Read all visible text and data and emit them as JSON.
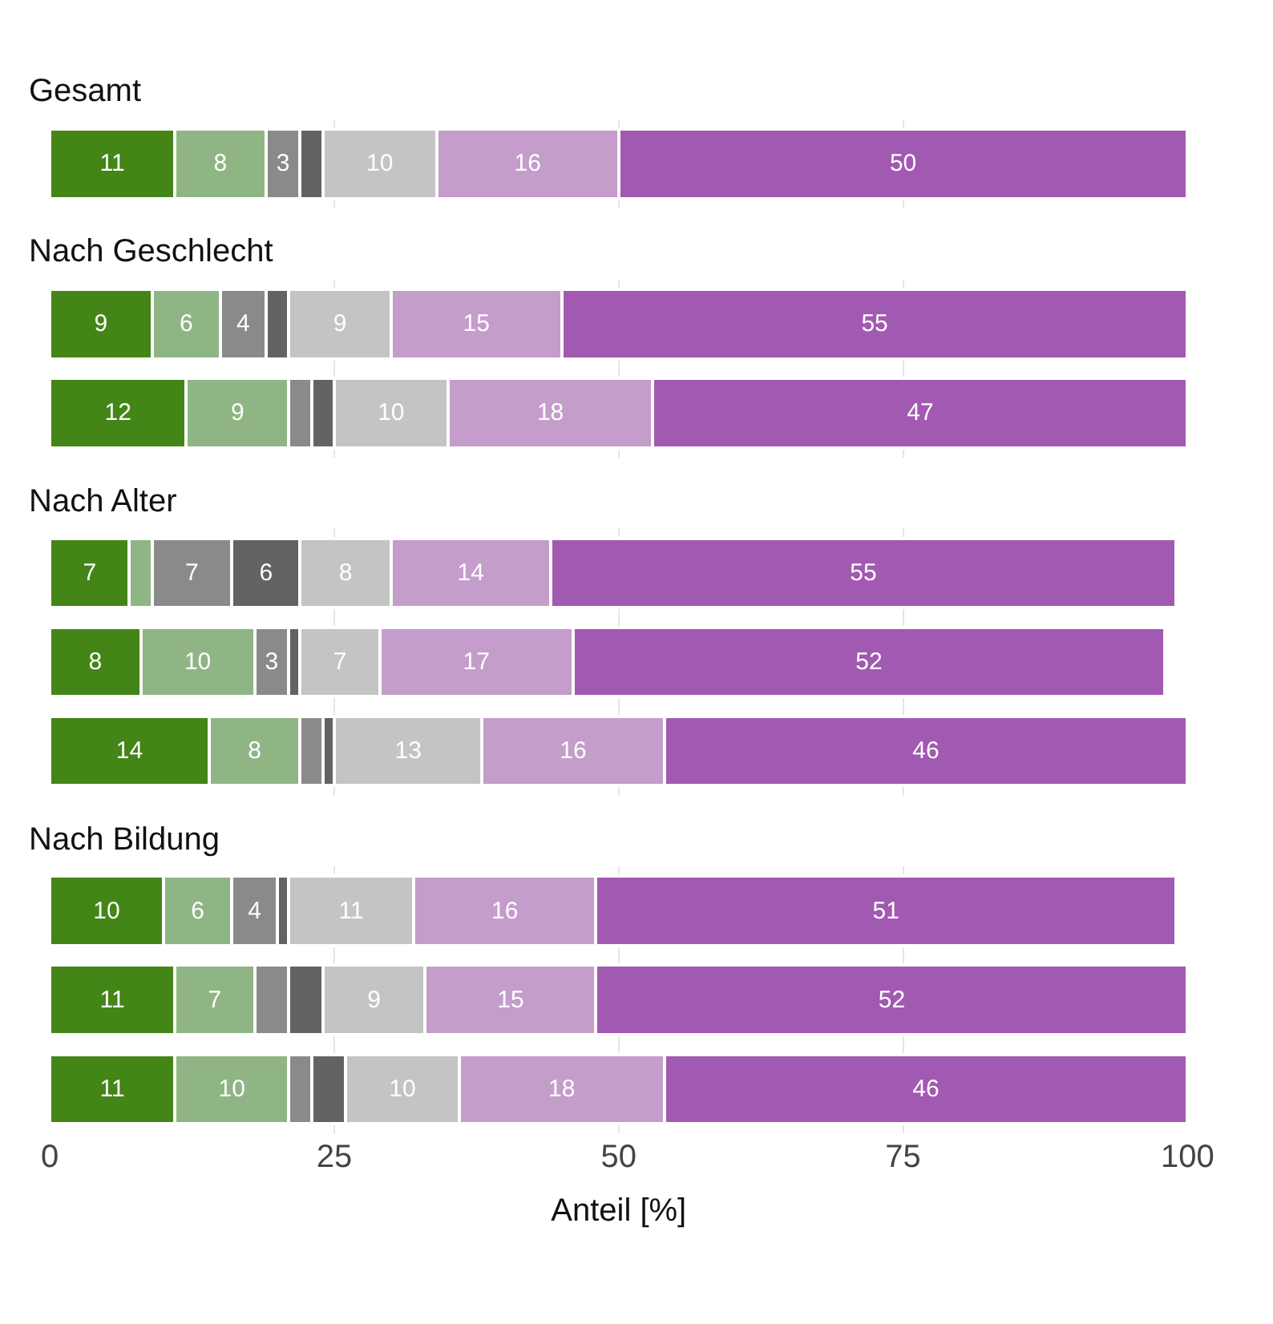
{
  "chart_data": [
    {
      "type": "bar",
      "title": "Gesamt",
      "orientation": "horizontal",
      "stacked": true,
      "categories": [
        null
      ],
      "xlim": [
        0,
        100
      ],
      "xticks": [
        0,
        25,
        50,
        75,
        100
      ],
      "tick_labels": false,
      "grid": "x",
      "series": [
        {
          "color": "#448517",
          "values": [
            11
          ],
          "value_labels": [
            "11"
          ]
        },
        {
          "color": "#8fb584",
          "values": [
            8
          ],
          "value_labels": [
            "8"
          ]
        },
        {
          "color": "#8a8a8a",
          "values": [
            3
          ],
          "value_labels": [
            "3"
          ]
        },
        {
          "color": "#636363",
          "values": [
            2
          ],
          "value_labels": [
            null
          ]
        },
        {
          "color": "#c4c4c4",
          "values": [
            10
          ],
          "value_labels": [
            "10"
          ]
        },
        {
          "color": "#c49dcb",
          "values": [
            16
          ],
          "value_labels": [
            "16"
          ]
        },
        {
          "color": "#a259b1",
          "values": [
            50
          ],
          "value_labels": [
            "50"
          ]
        }
      ]
    },
    {
      "type": "bar",
      "title": "Nach Geschlecht",
      "orientation": "horizontal",
      "stacked": true,
      "categories": [
        null,
        null
      ],
      "xlim": [
        0,
        100
      ],
      "xticks": [
        0,
        25,
        50,
        75,
        100
      ],
      "tick_labels": false,
      "grid": "x",
      "series": [
        {
          "color": "#448517",
          "values": [
            9,
            12
          ],
          "value_labels": [
            "9",
            "12"
          ]
        },
        {
          "color": "#8fb584",
          "values": [
            6,
            9
          ],
          "value_labels": [
            "6",
            "9"
          ]
        },
        {
          "color": "#8a8a8a",
          "values": [
            4,
            2
          ],
          "value_labels": [
            "4",
            null
          ]
        },
        {
          "color": "#636363",
          "values": [
            2,
            2
          ],
          "value_labels": [
            null,
            null
          ]
        },
        {
          "color": "#c4c4c4",
          "values": [
            9,
            10
          ],
          "value_labels": [
            "9",
            "10"
          ]
        },
        {
          "color": "#c49dcb",
          "values": [
            15,
            18
          ],
          "value_labels": [
            "15",
            "18"
          ]
        },
        {
          "color": "#a259b1",
          "values": [
            55,
            47
          ],
          "value_labels": [
            "55",
            "47"
          ]
        }
      ]
    },
    {
      "type": "bar",
      "title": "Nach Alter",
      "orientation": "horizontal",
      "stacked": true,
      "categories": [
        null,
        null,
        null
      ],
      "xlim": [
        0,
        100
      ],
      "xticks": [
        0,
        25,
        50,
        75,
        100
      ],
      "tick_labels": false,
      "grid": "x",
      "series": [
        {
          "color": "#448517",
          "values": [
            7,
            8,
            14
          ],
          "value_labels": [
            "7",
            "8",
            "14"
          ]
        },
        {
          "color": "#8fb584",
          "values": [
            2,
            10,
            8
          ],
          "value_labels": [
            null,
            "10",
            "8"
          ]
        },
        {
          "color": "#8a8a8a",
          "values": [
            7,
            3,
            2
          ],
          "value_labels": [
            "7",
            "3",
            null
          ]
        },
        {
          "color": "#636363",
          "values": [
            6,
            1,
            1
          ],
          "value_labels": [
            "6",
            null,
            null
          ]
        },
        {
          "color": "#c4c4c4",
          "values": [
            8,
            7,
            13
          ],
          "value_labels": [
            "8",
            "7",
            "13"
          ]
        },
        {
          "color": "#c49dcb",
          "values": [
            14,
            17,
            16
          ],
          "value_labels": [
            "14",
            "17",
            "16"
          ]
        },
        {
          "color": "#a259b1",
          "values": [
            55,
            52,
            46
          ],
          "value_labels": [
            "55",
            "52",
            "46"
          ]
        }
      ]
    },
    {
      "type": "bar",
      "title": "Nach Bildung",
      "orientation": "horizontal",
      "stacked": true,
      "categories": [
        null,
        null,
        null
      ],
      "xlim": [
        0,
        100
      ],
      "xticks": [
        0,
        25,
        50,
        75,
        100
      ],
      "tick_labels": "x",
      "xlabel": "Anteil [%]",
      "grid": "x",
      "series": [
        {
          "color": "#448517",
          "values": [
            10,
            11,
            11
          ],
          "value_labels": [
            "10",
            "11",
            "11"
          ]
        },
        {
          "color": "#8fb584",
          "values": [
            6,
            7,
            10
          ],
          "value_labels": [
            "6",
            "7",
            "10"
          ]
        },
        {
          "color": "#8a8a8a",
          "values": [
            4,
            3,
            2
          ],
          "value_labels": [
            "4",
            null,
            null
          ]
        },
        {
          "color": "#636363",
          "values": [
            1,
            3,
            3
          ],
          "value_labels": [
            null,
            null,
            null
          ]
        },
        {
          "color": "#c4c4c4",
          "values": [
            11,
            9,
            10
          ],
          "value_labels": [
            "11",
            "9",
            "10"
          ]
        },
        {
          "color": "#c49dcb",
          "values": [
            16,
            15,
            18
          ],
          "value_labels": [
            "16",
            "15",
            "18"
          ]
        },
        {
          "color": "#a259b1",
          "values": [
            51,
            52,
            46
          ],
          "value_labels": [
            "51",
            "52",
            "46"
          ]
        }
      ]
    }
  ]
}
